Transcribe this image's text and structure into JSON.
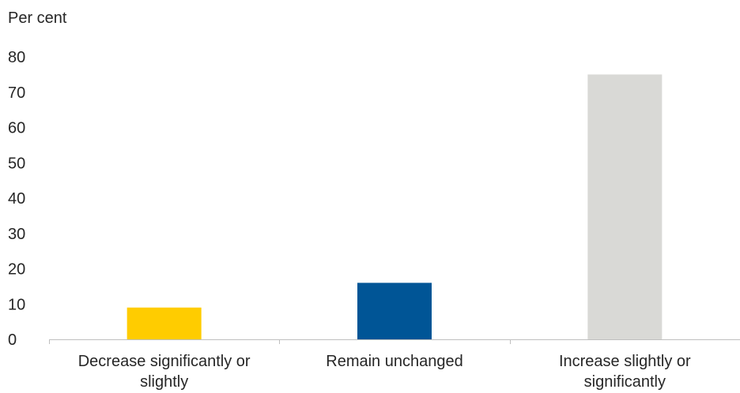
{
  "chart_data": {
    "type": "bar",
    "ylabel": "Per cent",
    "categories": [
      [
        "Decrease significantly or",
        "slightly"
      ],
      [
        "Remain unchanged"
      ],
      [
        "Increase slightly or",
        "significantly"
      ]
    ],
    "values": [
      9,
      16,
      75
    ],
    "colors": [
      "#FFCC00",
      "#005596",
      "#D9D9D6"
    ],
    "ylim": [
      0,
      80
    ],
    "yticks": [
      "0",
      "10",
      "20",
      "30",
      "40",
      "50",
      "60",
      "70",
      "80"
    ],
    "grid": false,
    "legend": "none"
  }
}
